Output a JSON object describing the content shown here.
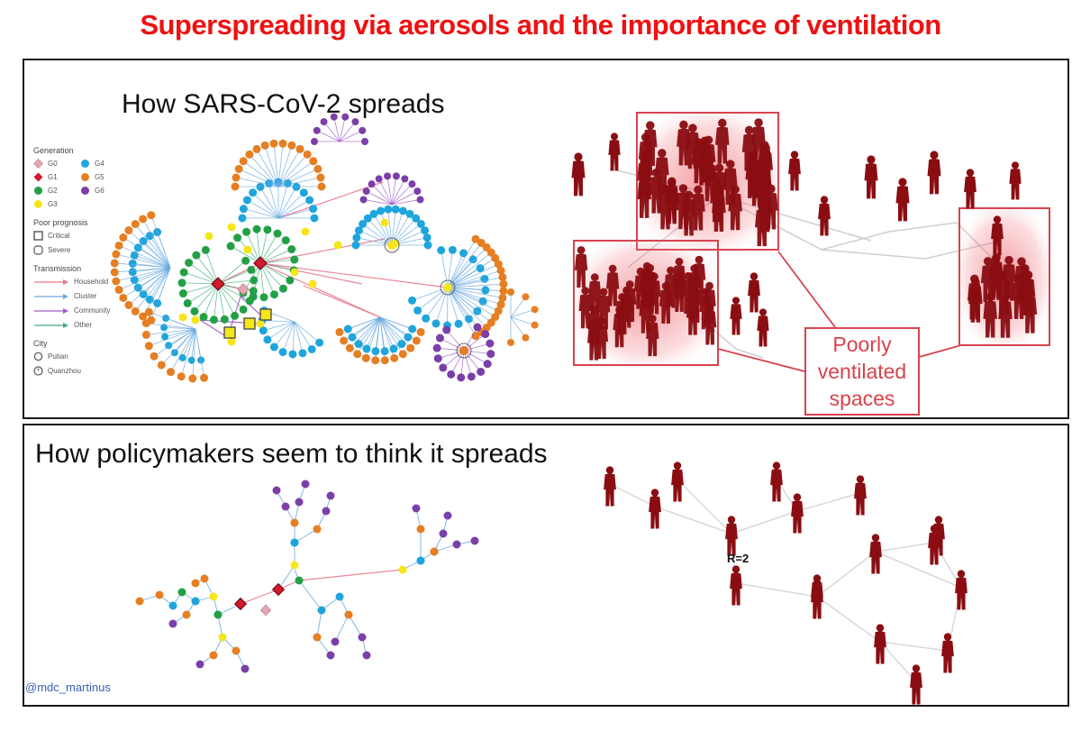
{
  "title": "Superspreading via aerosols and the importance of ventilation",
  "top_panel": {
    "heading": "How SARS-CoV-2 spreads",
    "legend": {
      "generation_title": "Generation",
      "generations": [
        {
          "label": "G0",
          "color": "#e0a8b0",
          "shape": "diamond-dashed"
        },
        {
          "label": "G4",
          "color": "#1ea5dc",
          "shape": "circle"
        },
        {
          "label": "G1",
          "color": "#d11a2a",
          "shape": "diamond"
        },
        {
          "label": "G5",
          "color": "#e67e22",
          "shape": "circle"
        },
        {
          "label": "G2",
          "color": "#22a045",
          "shape": "circle"
        },
        {
          "label": "G6",
          "color": "#7b3fa8",
          "shape": "circle"
        },
        {
          "label": "G3",
          "color": "#f5e61a",
          "shape": "circle"
        }
      ],
      "prognosis_title": "Poor prognosis",
      "prognosis": [
        {
          "label": "Critical",
          "shape": "square-ring"
        },
        {
          "label": "Severe",
          "shape": "rounded-ring"
        }
      ],
      "transmission_title": "Transmission",
      "transmission": [
        {
          "label": "Household",
          "color": "#e8788a"
        },
        {
          "label": "Cluster",
          "color": "#6aa9e0"
        },
        {
          "label": "Community",
          "color": "#a05bc8"
        },
        {
          "label": "Other",
          "color": "#3fae7a"
        }
      ],
      "city_title": "City",
      "cities": [
        {
          "label": "Putian",
          "shape": "ring"
        },
        {
          "label": "Quanzhou",
          "shape": "star-ring"
        }
      ]
    },
    "callout": [
      "Poorly",
      "ventilated",
      "spaces"
    ],
    "colors": {
      "person": "#8a0d12",
      "highlight": "#e8404a",
      "callout": "#d8434d"
    }
  },
  "bottom_panel": {
    "heading": "How policymakers seem to think it spreads",
    "r_label": "R=2"
  },
  "handle": "@mdc_martinus"
}
